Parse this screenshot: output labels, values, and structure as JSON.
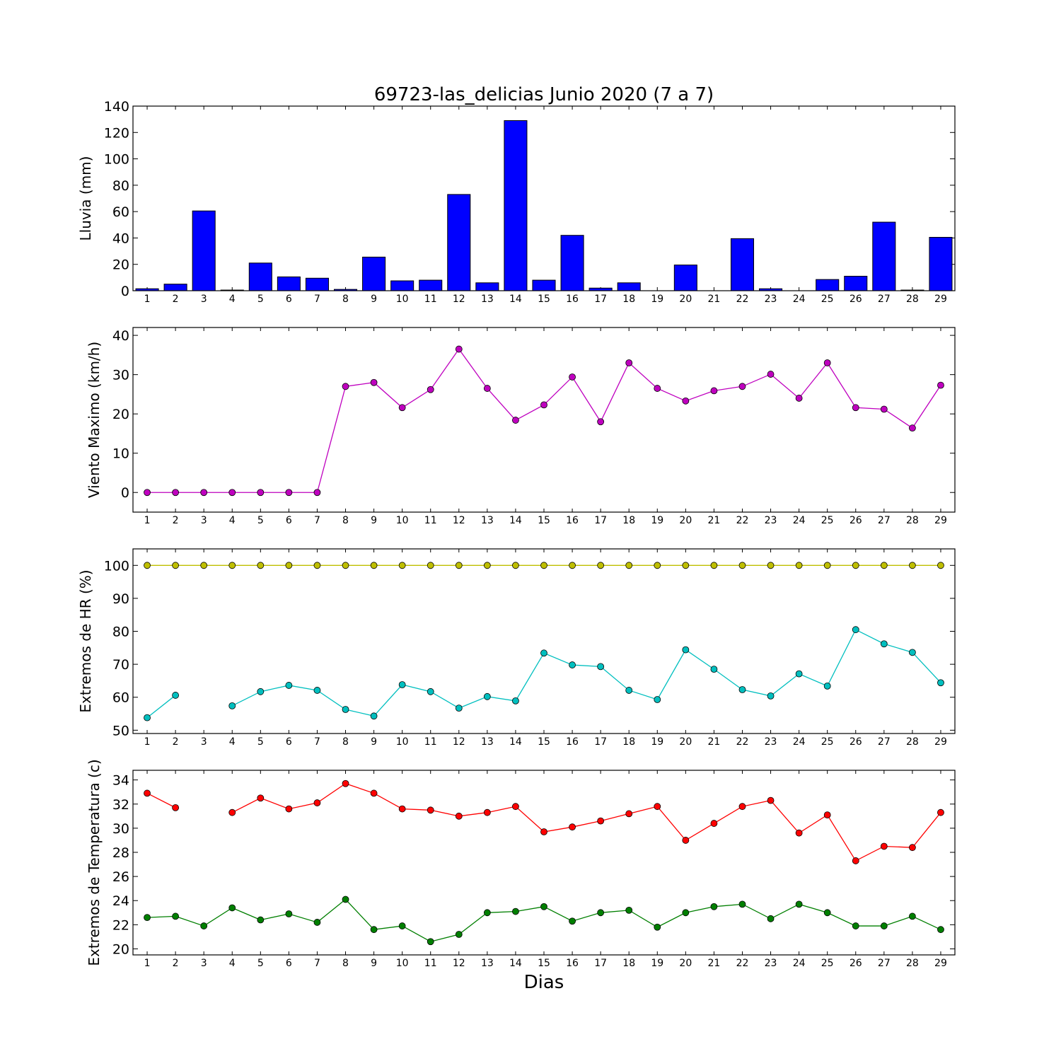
{
  "title": "69723-las_delicias Junio 2020  (7 a 7)",
  "xlabel": "Dias",
  "chart_data": [
    {
      "type": "bar",
      "ylabel": "Lluvia (mm)",
      "ylim": [
        0,
        140
      ],
      "yticks": [
        0,
        20,
        40,
        60,
        80,
        100,
        120,
        140
      ],
      "x": [
        1,
        2,
        3,
        4,
        5,
        6,
        7,
        8,
        9,
        10,
        11,
        12,
        13,
        14,
        15,
        16,
        17,
        18,
        19,
        20,
        21,
        22,
        23,
        24,
        25,
        26,
        27,
        28,
        29
      ],
      "series": [
        {
          "color": "#0000ff",
          "values": [
            1.5,
            5,
            60.5,
            0.5,
            21,
            10.5,
            9.5,
            1,
            25.5,
            7.5,
            8,
            73,
            6,
            129,
            8,
            42,
            2,
            6,
            0,
            19.5,
            0,
            39.5,
            1.5,
            0,
            8.5,
            11,
            52,
            0.5,
            40.5
          ]
        }
      ]
    },
    {
      "type": "line",
      "ylabel": "Viento Maximo (km/h)",
      "ylim": [
        -5,
        42
      ],
      "yticks": [
        0,
        10,
        20,
        30,
        40
      ],
      "x": [
        1,
        2,
        3,
        4,
        5,
        6,
        7,
        8,
        9,
        10,
        11,
        12,
        13,
        14,
        15,
        16,
        17,
        18,
        19,
        20,
        21,
        22,
        23,
        24,
        25,
        26,
        27,
        28,
        29
      ],
      "series": [
        {
          "color": "#bf00bf",
          "values": [
            0,
            0,
            0,
            0,
            0,
            0,
            0,
            27,
            28,
            21.6,
            26.2,
            36.5,
            26.5,
            18.4,
            22.3,
            29.4,
            18,
            33,
            26.5,
            23.3,
            25.9,
            27,
            30.1,
            24,
            33,
            21.6,
            21.2,
            16.4,
            27.3
          ]
        }
      ]
    },
    {
      "type": "line",
      "ylabel": "Extremos de HR (%)",
      "ylim": [
        49,
        105
      ],
      "yticks": [
        50,
        60,
        70,
        80,
        90,
        100
      ],
      "x": [
        1,
        2,
        3,
        4,
        5,
        6,
        7,
        8,
        9,
        10,
        11,
        12,
        13,
        14,
        15,
        16,
        17,
        18,
        19,
        20,
        21,
        22,
        23,
        24,
        25,
        26,
        27,
        28,
        29
      ],
      "series": [
        {
          "color": "#bfbf00",
          "values": [
            100,
            100,
            100,
            100,
            100,
            100,
            100,
            100,
            100,
            100,
            100,
            100,
            100,
            100,
            100,
            100,
            100,
            100,
            100,
            100,
            100,
            100,
            100,
            100,
            100,
            100,
            100,
            100,
            100
          ]
        },
        {
          "color": "#00bfbf",
          "values": [
            53.8,
            60.6,
            null,
            57.4,
            61.7,
            63.6,
            62.1,
            56.3,
            54.3,
            63.8,
            61.7,
            56.7,
            60.2,
            58.9,
            73.4,
            69.8,
            69.3,
            62.1,
            59.3,
            74.4,
            68.5,
            62.3,
            60.4,
            67.1,
            63.4,
            80.5,
            76.2,
            73.6,
            64.4
          ]
        }
      ]
    },
    {
      "type": "line",
      "ylabel": "Extremos de Temperatura (c)",
      "ylim": [
        19.5,
        34.8
      ],
      "yticks": [
        20,
        22,
        24,
        26,
        28,
        30,
        32,
        34
      ],
      "x": [
        1,
        2,
        3,
        4,
        5,
        6,
        7,
        8,
        9,
        10,
        11,
        12,
        13,
        14,
        15,
        16,
        17,
        18,
        19,
        20,
        21,
        22,
        23,
        24,
        25,
        26,
        27,
        28,
        29
      ],
      "series": [
        {
          "color": "#ff0000",
          "values": [
            32.9,
            31.7,
            null,
            31.3,
            32.5,
            31.6,
            32.1,
            33.7,
            32.9,
            31.6,
            31.5,
            31,
            31.3,
            31.8,
            29.7,
            30.1,
            30.6,
            31.2,
            31.8,
            29,
            30.4,
            31.8,
            32.3,
            29.6,
            31.1,
            27.3,
            28.5,
            28.4,
            31.3
          ]
        },
        {
          "color": "#007f00",
          "values": [
            22.6,
            22.7,
            21.9,
            23.4,
            22.4,
            22.9,
            22.2,
            24.1,
            21.6,
            21.9,
            20.6,
            21.2,
            23,
            23.1,
            23.5,
            22.3,
            23,
            23.2,
            21.8,
            23,
            23.5,
            23.7,
            22.5,
            23.7,
            23,
            21.9,
            21.9,
            22.7,
            21.6
          ]
        }
      ]
    }
  ]
}
